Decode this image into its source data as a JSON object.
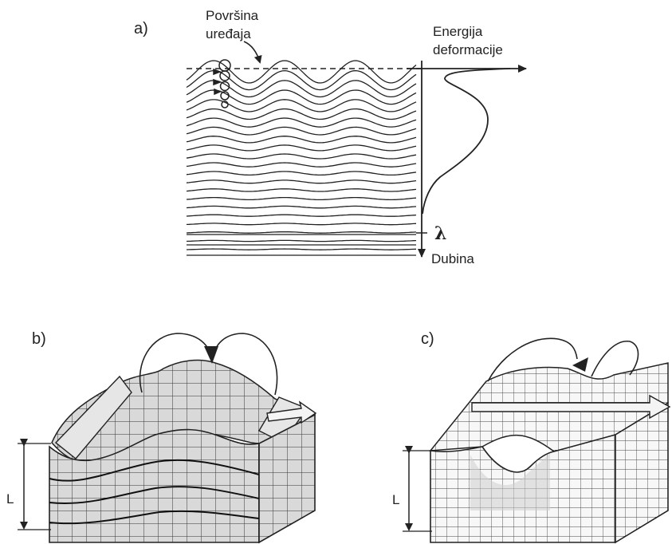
{
  "panel_a": {
    "label": "a)",
    "surface_label_line1": "Površina",
    "surface_label_line2": "uređaja",
    "energy_label_line1": "Energija",
    "energy_label_line2": "deformacije",
    "lambda_label": "λ",
    "depth_label": "Dubina"
  },
  "panel_b": {
    "label": "b)",
    "depth_marker": "L"
  },
  "panel_c": {
    "label": "c)",
    "depth_marker": "L"
  },
  "colors": {
    "line": "#222222",
    "shade": "#d9d9d9",
    "shade_dark": "#bdbdbd",
    "arrow_fill": "#f4f4f4"
  }
}
